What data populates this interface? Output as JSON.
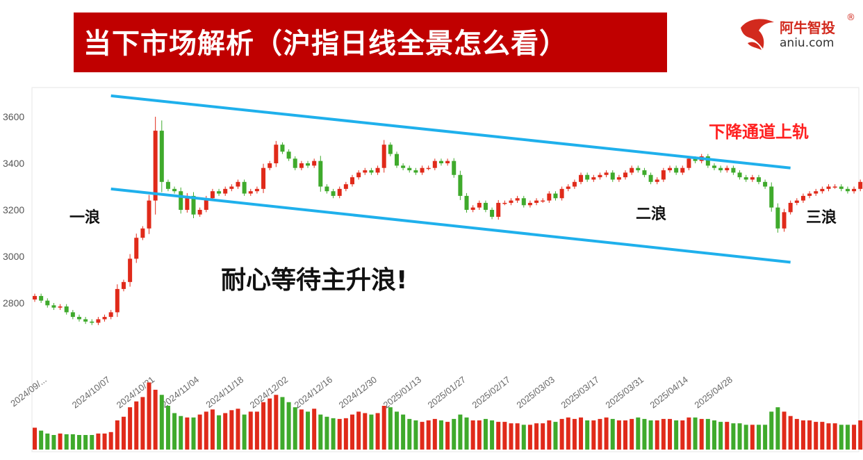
{
  "header": {
    "title": "当下市场解析（沪指日线全景怎么看）"
  },
  "logo": {
    "cn": "阿牛智投",
    "reg": "®",
    "en": "aniu.com",
    "icon": "bull-logo-icon"
  },
  "colors": {
    "up": "#e02a1a",
    "down": "#3faa2c",
    "channel": "#1fb0ec",
    "title_bg": "#c00000",
    "accent_text": "#ff2020"
  },
  "annotations": {
    "wave1": "一浪",
    "wave2": "二浪",
    "wave3": "三浪",
    "upper_rail": "下降通道上轨",
    "headline": "耐心等待主升浪!"
  },
  "chart_data": {
    "type": "candlestick",
    "y_ticks": [
      2800,
      3000,
      3200,
      3400,
      3600
    ],
    "x_tick_labels": [
      "2024/09/...",
      "2024/10/07",
      "2024/10/21",
      "2024/11/04",
      "2024/11/18",
      "2024/12/02",
      "2024/12/16",
      "2024/12/30",
      "2025/01/13",
      "2025/01/27",
      "2025/02/17",
      "2025/03/03",
      "2025/03/17",
      "2025/03/31",
      "2025/04/14",
      "2025/04/28"
    ],
    "x_tick_index": [
      0,
      10,
      17,
      24,
      31,
      38,
      45,
      52,
      59,
      66,
      73,
      80,
      87,
      94,
      101,
      108
    ],
    "channel": {
      "upper": {
        "from": [
          12,
          3690
        ],
        "to": [
          119,
          3380
        ]
      },
      "lower": {
        "from": [
          12,
          3290
        ],
        "to": [
          119,
          2975
        ]
      }
    },
    "close": [
      2830,
      2810,
      2790,
      2780,
      2785,
      2760,
      2740,
      2730,
      2720,
      2715,
      2730,
      2740,
      2760,
      2860,
      2890,
      2990,
      3080,
      3120,
      3240,
      3540,
      3320,
      3290,
      3280,
      3200,
      3260,
      3180,
      3200,
      3250,
      3280,
      3270,
      3290,
      3300,
      3320,
      3270,
      3280,
      3290,
      3380,
      3400,
      3480,
      3450,
      3420,
      3380,
      3400,
      3390,
      3410,
      3300,
      3280,
      3260,
      3290,
      3310,
      3340,
      3360,
      3370,
      3360,
      3380,
      3480,
      3440,
      3390,
      3380,
      3370,
      3360,
      3380,
      3380,
      3410,
      3400,
      3410,
      3350,
      3260,
      3200,
      3210,
      3230,
      3200,
      3170,
      3230,
      3230,
      3240,
      3250,
      3220,
      3230,
      3240,
      3240,
      3270,
      3250,
      3290,
      3300,
      3320,
      3350,
      3330,
      3340,
      3350,
      3360,
      3330,
      3340,
      3360,
      3380,
      3370,
      3350,
      3320,
      3330,
      3370,
      3380,
      3360,
      3380,
      3420,
      3410,
      3430,
      3390,
      3380,
      3370,
      3380,
      3360,
      3340,
      3330,
      3340,
      3320,
      3300,
      3210,
      3120,
      3190,
      3230,
      3240,
      3260,
      3270,
      3280,
      3290,
      3300,
      3300,
      3290,
      3280,
      3290,
      3320,
      3350,
      3340
    ],
    "volume": [
      0.3,
      0.26,
      0.22,
      0.2,
      0.22,
      0.21,
      0.21,
      0.2,
      0.2,
      0.2,
      0.22,
      0.22,
      0.24,
      0.4,
      0.45,
      0.58,
      0.66,
      0.72,
      0.92,
      0.82,
      0.75,
      0.6,
      0.5,
      0.46,
      0.44,
      0.44,
      0.48,
      0.52,
      0.55,
      0.47,
      0.5,
      0.54,
      0.56,
      0.48,
      0.52,
      0.52,
      0.65,
      0.7,
      0.75,
      0.72,
      0.65,
      0.58,
      0.55,
      0.52,
      0.56,
      0.48,
      0.45,
      0.43,
      0.42,
      0.43,
      0.48,
      0.52,
      0.5,
      0.48,
      0.5,
      0.6,
      0.58,
      0.52,
      0.48,
      0.42,
      0.4,
      0.38,
      0.4,
      0.42,
      0.4,
      0.38,
      0.42,
      0.48,
      0.44,
      0.4,
      0.4,
      0.42,
      0.4,
      0.38,
      0.38,
      0.36,
      0.36,
      0.34,
      0.34,
      0.36,
      0.36,
      0.4,
      0.38,
      0.42,
      0.44,
      0.42,
      0.44,
      0.4,
      0.4,
      0.42,
      0.44,
      0.42,
      0.4,
      0.4,
      0.42,
      0.44,
      0.42,
      0.4,
      0.4,
      0.42,
      0.42,
      0.4,
      0.4,
      0.44,
      0.44,
      0.42,
      0.42,
      0.4,
      0.38,
      0.38,
      0.36,
      0.36,
      0.34,
      0.34,
      0.34,
      0.34,
      0.52,
      0.58,
      0.52,
      0.46,
      0.42,
      0.4,
      0.4,
      0.38,
      0.38,
      0.36,
      0.36,
      0.34,
      0.34,
      0.34,
      0.4,
      0.4,
      0.36
    ]
  }
}
